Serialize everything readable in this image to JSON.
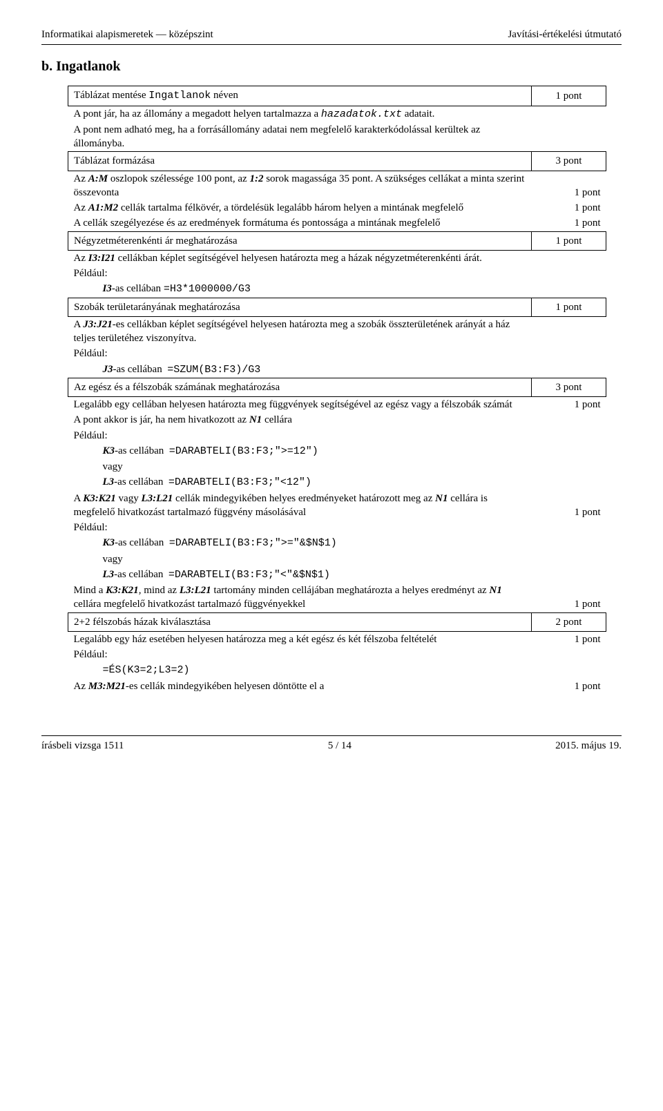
{
  "header": {
    "left": "Informatikai alapismeretek — középszint",
    "right": "Javítási-értékelési útmutató"
  },
  "section_title": "b. Ingatlanok",
  "rows": [
    {
      "type": "box",
      "left_html": "Táblázat mentése <span class='tt'>Ingatlanok</span> néven",
      "right": "1 pont"
    },
    {
      "type": "open",
      "left_html": "A pont jár, ha az állomány a megadott helyen tartalmazza a <span class='tt i'>hazadatok.txt</span> adatait.",
      "pt": ""
    },
    {
      "type": "open",
      "left_html": "A pont nem adható meg, ha a forrásállomány adatai nem megfelelő karakterkódolással kerültek az állományba.",
      "pt": ""
    },
    {
      "type": "box",
      "left_html": "Táblázat formázása",
      "right": "3 pont"
    },
    {
      "type": "open",
      "left_html": "Az <span class='bi'>A:M</span> oszlopok szélessége 100 pont, az <span class='bi'>1:2</span> sorok magassága 35 pont. A szükséges cellákat a minta szerint összevonta",
      "pt": "1 pont"
    },
    {
      "type": "open",
      "left_html": "Az <span class='bi'>A1:M2</span> cellák tartalma félkövér, a tördelésük legalább három helyen a mintának megfelelő",
      "pt": "1 pont"
    },
    {
      "type": "open",
      "left_html": "A cellák szegélyezése és az eredmények formátuma és pontossága a mintának megfelelő",
      "pt": "1 pont"
    },
    {
      "type": "box",
      "left_html": "Négyzetméterenkénti ár meghatározása",
      "right": "1 pont"
    },
    {
      "type": "open",
      "left_html": "Az <span class='bi'>I3:I21</span> cellákban képlet segítségével helyesen határozta meg a házak négyzetméterenkénti árát.",
      "pt": ""
    },
    {
      "type": "open",
      "left_html": "Például:",
      "pt": ""
    },
    {
      "type": "open",
      "left_html": "<span class='indent1'><span class='bi'>I3</span>-as cellában <span class='tt'>=H3*1000000/G3</span></span>",
      "pt": ""
    },
    {
      "type": "box",
      "left_html": "Szobák területarányának meghatározása",
      "right": "1 pont"
    },
    {
      "type": "open",
      "left_html": "A <span class='bi'>J3:J21</span>-es cellákban képlet segítségével helyesen határozta meg a szobák összterületének arányát a ház teljes területéhez viszonyítva.",
      "pt": ""
    },
    {
      "type": "open",
      "left_html": "Például:",
      "pt": ""
    },
    {
      "type": "open",
      "left_html": "<span class='indent1'><span class='bi'>J3</span>-as cellában &nbsp;<span class='tt'>=SZUM(B3:F3)/G3</span></span>",
      "pt": ""
    },
    {
      "type": "box",
      "left_html": "Az egész és a félszobák számának meghatározása",
      "right": "3 pont"
    },
    {
      "type": "open",
      "left_html": "Legalább egy cellában helyesen határozta meg függvények segítségével az egész vagy a félszobák számát",
      "pt": "1 pont"
    },
    {
      "type": "open",
      "left_html": "A pont akkor is jár, ha nem hivatkozott az <span class='bi'>N1</span> cellára",
      "pt": ""
    },
    {
      "type": "open",
      "left_html": "Például:",
      "pt": ""
    },
    {
      "type": "open",
      "left_html": "<span class='indent1'><span class='bi'>K3</span>-as cellában &nbsp;<span class='tt'>=DARABTELI(B3:F3;&quot;&gt;=12&quot;)</span></span>",
      "pt": ""
    },
    {
      "type": "open",
      "left_html": "<span class='indent1'>vagy</span>",
      "pt": ""
    },
    {
      "type": "open",
      "left_html": "<span class='indent1'><span class='bi'>L3</span>-as cellában &nbsp;<span class='tt'>=DARABTELI(B3:F3;&quot;&lt;12&quot;)</span></span>",
      "pt": ""
    },
    {
      "type": "open",
      "left_html": "A <span class='bi'>K3:K21</span> vagy <span class='bi'>L3:L21</span> cellák mindegyikében helyes eredményeket határozott meg az <span class='bi'>N1</span> cellára is megfelelő hivatkozást tartalmazó függvény másolásával",
      "pt": "1 pont"
    },
    {
      "type": "open",
      "left_html": "Például:",
      "pt": ""
    },
    {
      "type": "open",
      "left_html": "<span class='indent1'><span class='bi'>K3</span>-as cellában &nbsp;<span class='tt'>=DARABTELI(B3:F3;&quot;&gt;=&quot;&amp;$N$1)</span></span>",
      "pt": ""
    },
    {
      "type": "open",
      "left_html": "<span class='indent1'>vagy</span>",
      "pt": ""
    },
    {
      "type": "open",
      "left_html": "<span class='indent1'><span class='bi'>L3</span>-as cellában &nbsp;<span class='tt'>=DARABTELI(B3:F3;&quot;&lt;&quot;&amp;$N$1)</span></span>",
      "pt": ""
    },
    {
      "type": "open",
      "left_html": "Mind a <span class='bi'>K3:K21</span>, mind az <span class='bi'>L3:L21</span> tartomány minden cellájában meghatározta a helyes eredményt az <span class='bi'>N1</span> cellára megfelelő hivatkozást tartalmazó függvényekkel",
      "pt": "1 pont"
    },
    {
      "type": "box",
      "left_html": "2+2 félszobás házak kiválasztása",
      "right": "2 pont"
    },
    {
      "type": "open",
      "left_html": "Legalább egy ház esetében helyesen határozza meg a két egész és két félszoba feltételét",
      "pt": "1 pont"
    },
    {
      "type": "open",
      "left_html": "Például:",
      "pt": ""
    },
    {
      "type": "open",
      "left_html": "<span class='indent1'><span class='tt'>=ÉS(K3=2;L3=2)</span></span>",
      "pt": ""
    },
    {
      "type": "open",
      "left_html": "Az <span class='bi'>M3:M21</span>-es cellák mindegyikében helyesen döntötte el a",
      "pt": "1 pont"
    }
  ],
  "footer": {
    "left": "írásbeli vizsga 1511",
    "center": "5 / 14",
    "right": "2015. május 19."
  }
}
